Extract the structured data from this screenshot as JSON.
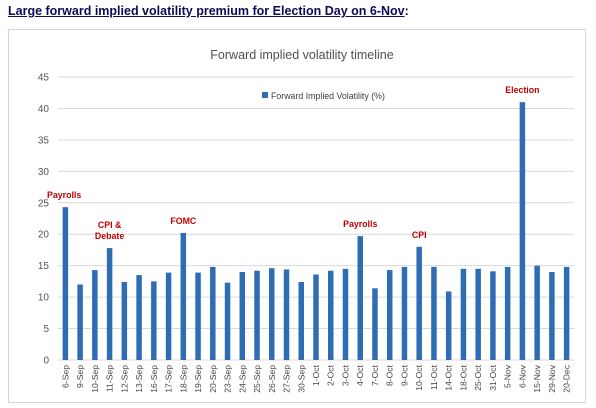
{
  "headline": {
    "text": "Large forward implied volatility premium for Election Day on 6-Nov",
    "suffix": ":"
  },
  "colors": {
    "bar": "#2e6db4",
    "annotation": "#c00000",
    "headline": "#0b0b5a"
  },
  "chart_data": {
    "type": "bar",
    "title": "Forward implied volatility timeline",
    "xlabel": "",
    "ylabel": "",
    "ylim": [
      0,
      45
    ],
    "yticks": [
      0,
      5,
      10,
      15,
      20,
      25,
      30,
      35,
      40,
      45
    ],
    "grid": true,
    "legend": {
      "position": "top-center",
      "entries": [
        "Forward Implied Volatility (%)"
      ]
    },
    "categories": [
      "6-Sep",
      "9-Sep",
      "10-Sep",
      "11-Sep",
      "12-Sep",
      "13-Sep",
      "16-Sep",
      "17-Sep",
      "18-Sep",
      "19-Sep",
      "20-Sep",
      "23-Sep",
      "24-Sep",
      "25-Sep",
      "26-Sep",
      "27-Sep",
      "30-Sep",
      "1-Oct",
      "2-Oct",
      "3-Oct",
      "4-Oct",
      "7-Oct",
      "8-Oct",
      "9-Oct",
      "10-Oct",
      "11-Oct",
      "14-Oct",
      "18-Oct",
      "25-Oct",
      "31-Oct",
      "5-Nov",
      "6-Nov",
      "15-Nov",
      "29-Nov",
      "20-Dec"
    ],
    "series": [
      {
        "name": "Forward Implied Volatility (%)",
        "values": [
          24.3,
          12.0,
          14.3,
          17.8,
          12.4,
          13.5,
          12.5,
          13.9,
          20.2,
          13.9,
          14.8,
          12.3,
          14.0,
          14.2,
          14.6,
          14.4,
          12.4,
          13.6,
          14.2,
          14.5,
          19.7,
          11.4,
          14.3,
          14.8,
          18.0,
          14.8,
          10.9,
          14.5,
          14.5,
          14.1,
          14.8,
          41.0,
          15.0,
          14.0,
          14.8
        ]
      }
    ],
    "annotations": [
      {
        "text": "Payrolls",
        "category": "6-Sep"
      },
      {
        "text": "CPI &",
        "category": "11-Sep"
      },
      {
        "text": "Debate",
        "category": "11-Sep"
      },
      {
        "text": "FOMC",
        "category": "18-Sep"
      },
      {
        "text": "Payrolls",
        "category": "4-Oct"
      },
      {
        "text": "CPI",
        "category": "10-Oct"
      },
      {
        "text": "Election",
        "category": "6-Nov"
      }
    ]
  }
}
